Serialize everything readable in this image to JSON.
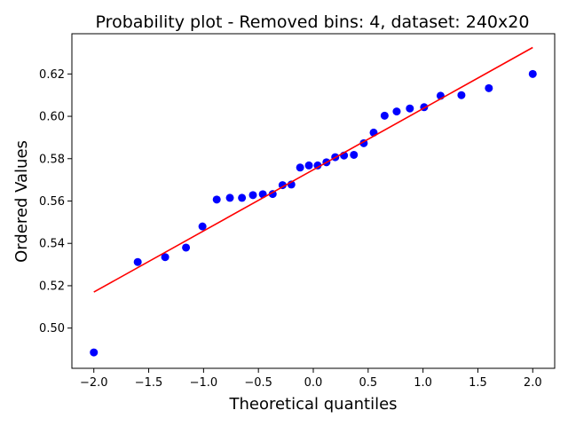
{
  "colors": {
    "points": "#0000ff",
    "fit_line": "#ff0000",
    "axes": "#000000",
    "background": "#ffffff"
  },
  "chart_data": {
    "type": "scatter",
    "title": "Probability plot - Removed bins: 4, dataset: 240x20",
    "xlabel": "Theoretical quantiles",
    "ylabel": "Ordered Values",
    "xlim": [
      -2.2,
      2.2
    ],
    "ylim": [
      0.481,
      0.639
    ],
    "xticks": [
      -2.0,
      -1.5,
      -1.0,
      -0.5,
      0.0,
      0.5,
      1.0,
      1.5,
      2.0
    ],
    "xtick_labels": [
      "−2.0",
      "−1.5",
      "−1.0",
      "−0.5",
      "0.0",
      "0.5",
      "1.0",
      "1.5",
      "2.0"
    ],
    "yticks": [
      0.5,
      0.52,
      0.54,
      0.56,
      0.58,
      0.6,
      0.62
    ],
    "ytick_labels": [
      "0.50",
      "0.52",
      "0.54",
      "0.56",
      "0.58",
      "0.60",
      "0.62"
    ],
    "grid": false,
    "points": [
      {
        "x": -2.0,
        "y": 0.4885
      },
      {
        "x": -1.6,
        "y": 0.5312
      },
      {
        "x": -1.35,
        "y": 0.5335
      },
      {
        "x": -1.16,
        "y": 0.538
      },
      {
        "x": -1.01,
        "y": 0.548
      },
      {
        "x": -0.88,
        "y": 0.5607
      },
      {
        "x": -0.76,
        "y": 0.5615
      },
      {
        "x": -0.65,
        "y": 0.5615
      },
      {
        "x": -0.55,
        "y": 0.5628
      },
      {
        "x": -0.46,
        "y": 0.5632
      },
      {
        "x": -0.37,
        "y": 0.5633
      },
      {
        "x": -0.28,
        "y": 0.5675
      },
      {
        "x": -0.2,
        "y": 0.5678
      },
      {
        "x": -0.12,
        "y": 0.5758
      },
      {
        "x": -0.04,
        "y": 0.5768
      },
      {
        "x": 0.04,
        "y": 0.5768
      },
      {
        "x": 0.12,
        "y": 0.5783
      },
      {
        "x": 0.2,
        "y": 0.5807
      },
      {
        "x": 0.28,
        "y": 0.5815
      },
      {
        "x": 0.37,
        "y": 0.5818
      },
      {
        "x": 0.46,
        "y": 0.5873
      },
      {
        "x": 0.55,
        "y": 0.5923
      },
      {
        "x": 0.65,
        "y": 0.6003
      },
      {
        "x": 0.76,
        "y": 0.6023
      },
      {
        "x": 0.88,
        "y": 0.6037
      },
      {
        "x": 1.01,
        "y": 0.6043
      },
      {
        "x": 1.16,
        "y": 0.6097
      },
      {
        "x": 1.35,
        "y": 0.61
      },
      {
        "x": 1.6,
        "y": 0.6133
      },
      {
        "x": 2.0,
        "y": 0.62
      }
    ],
    "fit_line": {
      "x": [
        -2.0,
        2.0
      ],
      "y": [
        0.517,
        0.6325
      ]
    }
  }
}
